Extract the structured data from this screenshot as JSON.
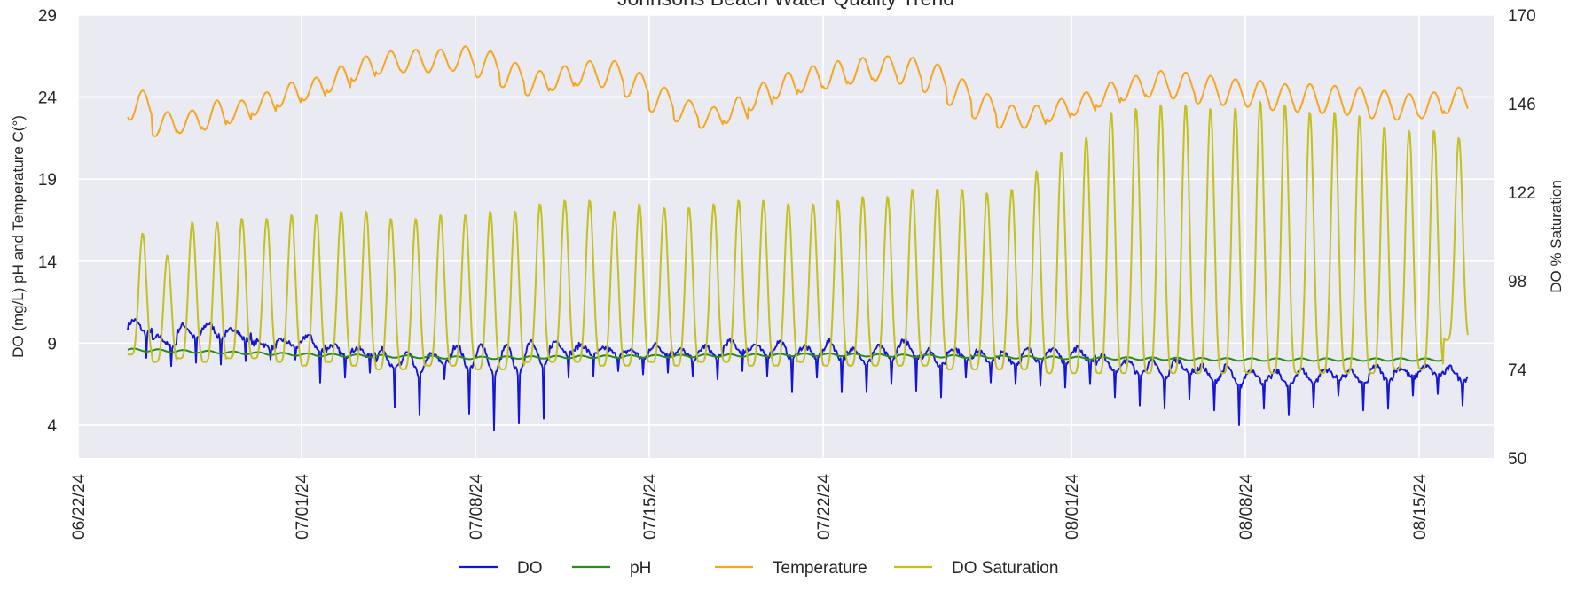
{
  "chart_data": {
    "type": "line",
    "title": "Johnsons Beach Water Quality Trend",
    "ylabel_left": "DO (mg/L) pH and Temperature C(°)",
    "ylabel_right": "DO % Saturation",
    "xlabel": "",
    "x_start": "2024-06-22",
    "x_end": "2024-08-18",
    "x_ticks": [
      "06/22/24",
      "07/01/24",
      "07/08/24",
      "07/15/24",
      "07/22/24",
      "08/01/24",
      "08/08/24",
      "08/15/24"
    ],
    "x_tick_dates": [
      "2024-06-22",
      "2024-07-01",
      "2024-07-08",
      "2024-07-15",
      "2024-07-22",
      "2024-08-01",
      "2024-08-08",
      "2024-08-15"
    ],
    "ylim_left": [
      2,
      29
    ],
    "yticks_left": [
      4,
      9,
      14,
      19,
      24,
      29
    ],
    "ylim_right": [
      50,
      170
    ],
    "yticks_right": [
      50,
      74,
      98,
      122,
      146,
      170
    ],
    "grid": true,
    "legend_position": "bottom-center",
    "series": [
      {
        "name": "DO",
        "axis": "left",
        "color": "#1515d6",
        "x": [
          "2024-06-24",
          "2024-06-25",
          "2024-06-26",
          "2024-06-27",
          "2024-06-28",
          "2024-06-29",
          "2024-06-30",
          "2024-07-01",
          "2024-07-02",
          "2024-07-03",
          "2024-07-04",
          "2024-07-05",
          "2024-07-06",
          "2024-07-07",
          "2024-07-08",
          "2024-07-09",
          "2024-07-10",
          "2024-07-11",
          "2024-07-12",
          "2024-07-13",
          "2024-07-14",
          "2024-07-15",
          "2024-07-16",
          "2024-07-17",
          "2024-07-18",
          "2024-07-19",
          "2024-07-20",
          "2024-07-21",
          "2024-07-22",
          "2024-07-23",
          "2024-07-24",
          "2024-07-25",
          "2024-07-26",
          "2024-07-27",
          "2024-07-28",
          "2024-07-29",
          "2024-07-30",
          "2024-07-31",
          "2024-08-01",
          "2024-08-02",
          "2024-08-03",
          "2024-08-04",
          "2024-08-05",
          "2024-08-06",
          "2024-08-07",
          "2024-08-08",
          "2024-08-09",
          "2024-08-10",
          "2024-08-11",
          "2024-08-12",
          "2024-08-13",
          "2024-08-14",
          "2024-08-15",
          "2024-08-16"
        ],
        "daily_high": [
          10.4,
          9.4,
          10.1,
          10.2,
          9.9,
          9.1,
          9.2,
          9.5,
          8.9,
          8.7,
          8.6,
          8.4,
          8.3,
          8.9,
          8.9,
          8.8,
          9.2,
          9.1,
          8.9,
          8.7,
          8.6,
          8.9,
          8.6,
          8.8,
          9.1,
          8.9,
          9.1,
          8.8,
          9.1,
          8.7,
          8.8,
          9.2,
          8.6,
          8.7,
          8.5,
          8.4,
          8.6,
          8.7,
          8.7,
          8.2,
          8.0,
          7.9,
          8.0,
          7.6,
          7.6,
          7.4,
          7.3,
          7.4,
          7.4,
          7.3,
          7.6,
          7.5,
          7.6,
          7.5
        ],
        "daily_low": [
          8.1,
          7.6,
          7.8,
          7.7,
          7.9,
          8.0,
          8.0,
          6.6,
          6.9,
          7.2,
          5.1,
          4.6,
          6.8,
          4.7,
          3.7,
          4.1,
          4.4,
          6.9,
          7.0,
          7.3,
          7.1,
          7.2,
          7.0,
          6.8,
          7.3,
          7.0,
          6.0,
          6.9,
          6.0,
          6.0,
          6.5,
          6.1,
          5.7,
          6.9,
          6.6,
          6.5,
          6.4,
          6.3,
          6.5,
          5.7,
          5.2,
          5.0,
          5.6,
          4.9,
          4.0,
          5.0,
          4.6,
          5.1,
          5.8,
          4.9,
          5.0,
          5.8,
          5.9,
          5.2
        ]
      },
      {
        "name": "pH",
        "axis": "left",
        "color": "#2a8a1f",
        "x": [
          "2024-06-24",
          "2024-07-01",
          "2024-07-08",
          "2024-07-15",
          "2024-07-22",
          "2024-08-01",
          "2024-08-08",
          "2024-08-16"
        ],
        "values": [
          8.6,
          8.3,
          8.1,
          8.2,
          8.3,
          8.1,
          8.0,
          8.0
        ]
      },
      {
        "name": "Temperature",
        "axis": "left",
        "color": "#f5a623",
        "x": [
          "2024-06-24",
          "2024-06-25",
          "2024-06-26",
          "2024-06-27",
          "2024-06-28",
          "2024-06-29",
          "2024-06-30",
          "2024-07-01",
          "2024-07-02",
          "2024-07-03",
          "2024-07-04",
          "2024-07-05",
          "2024-07-06",
          "2024-07-07",
          "2024-07-08",
          "2024-07-09",
          "2024-07-10",
          "2024-07-11",
          "2024-07-12",
          "2024-07-13",
          "2024-07-14",
          "2024-07-15",
          "2024-07-16",
          "2024-07-17",
          "2024-07-18",
          "2024-07-19",
          "2024-07-20",
          "2024-07-21",
          "2024-07-22",
          "2024-07-23",
          "2024-07-24",
          "2024-07-25",
          "2024-07-26",
          "2024-07-27",
          "2024-07-28",
          "2024-07-29",
          "2024-07-30",
          "2024-07-31",
          "2024-08-01",
          "2024-08-02",
          "2024-08-03",
          "2024-08-04",
          "2024-08-05",
          "2024-08-06",
          "2024-08-07",
          "2024-08-08",
          "2024-08-09",
          "2024-08-10",
          "2024-08-11",
          "2024-08-12",
          "2024-08-13",
          "2024-08-14",
          "2024-08-15",
          "2024-08-16"
        ],
        "daily_high": [
          24.4,
          23.1,
          23.2,
          23.8,
          23.8,
          24.3,
          24.9,
          25.2,
          25.9,
          26.5,
          26.8,
          26.9,
          26.9,
          27.1,
          26.8,
          26.1,
          25.6,
          25.9,
          26.2,
          26.2,
          25.5,
          24.6,
          23.8,
          23.4,
          24.0,
          24.9,
          25.5,
          25.9,
          26.2,
          26.4,
          26.5,
          26.4,
          26.0,
          25.1,
          24.2,
          23.5,
          23.5,
          23.9,
          24.3,
          24.9,
          25.3,
          25.6,
          25.5,
          25.3,
          25.1,
          25.0,
          24.8,
          24.8,
          24.7,
          24.6,
          24.4,
          24.2,
          24.3,
          24.6
        ],
        "daily_low": [
          22.6,
          21.6,
          21.8,
          22.0,
          22.4,
          22.9,
          23.4,
          23.8,
          24.3,
          25.0,
          25.4,
          25.5,
          25.5,
          25.6,
          25.2,
          24.6,
          24.1,
          24.4,
          24.7,
          24.6,
          24.0,
          23.1,
          22.5,
          22.1,
          22.4,
          23.2,
          23.9,
          24.3,
          24.5,
          24.8,
          25.0,
          24.8,
          24.3,
          23.5,
          22.7,
          22.1,
          22.1,
          22.5,
          22.9,
          23.4,
          23.8,
          24.0,
          23.9,
          23.6,
          23.5,
          23.4,
          23.2,
          23.1,
          23.0,
          22.9,
          22.7,
          22.6,
          22.7,
          23.0
        ]
      },
      {
        "name": "DO Saturation",
        "axis": "right",
        "color": "#c3c01f",
        "x": [
          "2024-06-24",
          "2024-06-25",
          "2024-06-26",
          "2024-06-27",
          "2024-06-28",
          "2024-06-29",
          "2024-06-30",
          "2024-07-01",
          "2024-07-02",
          "2024-07-03",
          "2024-07-04",
          "2024-07-05",
          "2024-07-06",
          "2024-07-07",
          "2024-07-08",
          "2024-07-09",
          "2024-07-10",
          "2024-07-11",
          "2024-07-12",
          "2024-07-13",
          "2024-07-14",
          "2024-07-15",
          "2024-07-16",
          "2024-07-17",
          "2024-07-18",
          "2024-07-19",
          "2024-07-20",
          "2024-07-21",
          "2024-07-22",
          "2024-07-23",
          "2024-07-24",
          "2024-07-25",
          "2024-07-26",
          "2024-07-27",
          "2024-07-28",
          "2024-07-29",
          "2024-07-30",
          "2024-07-31",
          "2024-08-01",
          "2024-08-02",
          "2024-08-03",
          "2024-08-04",
          "2024-08-05",
          "2024-08-06",
          "2024-08-07",
          "2024-08-08",
          "2024-08-09",
          "2024-08-10",
          "2024-08-11",
          "2024-08-12",
          "2024-08-13",
          "2024-08-14",
          "2024-08-15",
          "2024-08-16"
        ],
        "daily_high": [
          111,
          105,
          114,
          114,
          115,
          115,
          116,
          116,
          117,
          117,
          115,
          115,
          116,
          116,
          117,
          117,
          119,
          120,
          120,
          117,
          119,
          118,
          118,
          119,
          120,
          120,
          119,
          119,
          120,
          121,
          121,
          123,
          123,
          123,
          122,
          123,
          128,
          133,
          137,
          144,
          145,
          146,
          146,
          145,
          145,
          147,
          146,
          144,
          144,
          143,
          140,
          139,
          139,
          137
        ],
        "daily_low": [
          78,
          76,
          77,
          76,
          77,
          77,
          76,
          75,
          76,
          75,
          74,
          74,
          75,
          75,
          74,
          74,
          76,
          76,
          76,
          75,
          75,
          76,
          75,
          76,
          76,
          75,
          75,
          76,
          75,
          75,
          75,
          75,
          75,
          74,
          74,
          74,
          74,
          73,
          73,
          73,
          73,
          73,
          73,
          73,
          73,
          73,
          73,
          73,
          73,
          73,
          73,
          74,
          74,
          82
        ]
      }
    ]
  }
}
